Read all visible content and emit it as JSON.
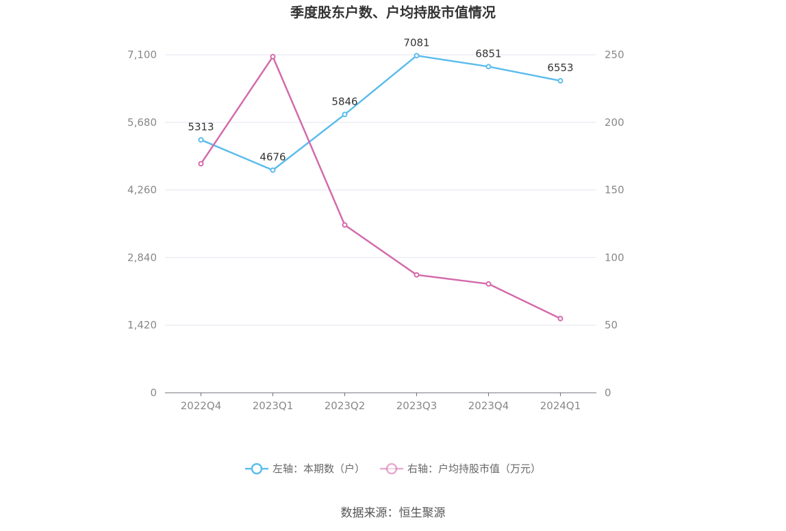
{
  "chart_data": {
    "type": "line",
    "title": "季度股东户数、户均持股市值情况",
    "categories": [
      "2022Q4",
      "2023Q1",
      "2023Q2",
      "2023Q3",
      "2023Q4",
      "2024Q1"
    ],
    "y_left": {
      "ticks": [
        "0",
        "1,420",
        "2,840",
        "4,260",
        "5,680",
        "7,100"
      ],
      "range": [
        0,
        7100
      ]
    },
    "y_right": {
      "ticks": [
        "0",
        "50",
        "100",
        "150",
        "200",
        "250"
      ],
      "range": [
        0,
        250
      ]
    },
    "series": [
      {
        "name": "左轴：本期数（户）",
        "axis": "left",
        "color": "#5bbcec",
        "values": [
          5313,
          4676,
          5846,
          7081,
          6851,
          6553
        ],
        "labels": [
          "5313",
          "4676",
          "5846",
          "7081",
          "6851",
          "6553"
        ]
      },
      {
        "name": "右轴：户均持股市值（万元）",
        "axis": "right",
        "color": "#d36aab",
        "values": [
          169.4,
          248.6,
          124.1,
          87.2,
          80.5,
          54.9
        ]
      }
    ],
    "legend_position": "bottom",
    "grid": true
  },
  "source": "数据来源：恒生聚源"
}
